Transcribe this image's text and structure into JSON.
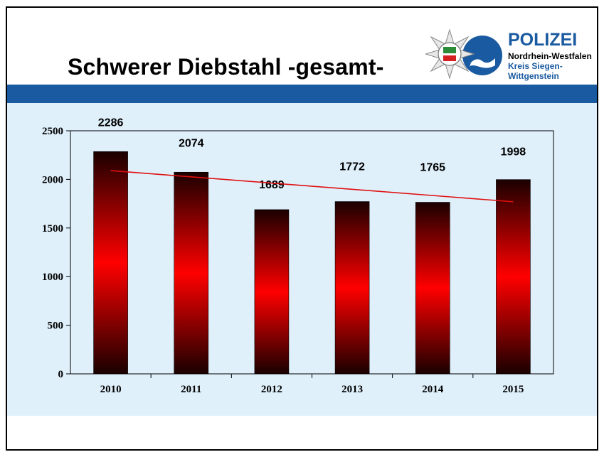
{
  "slide": {
    "title": "Schwerer Diebstahl -gesamt-"
  },
  "logo": {
    "line1": "POLIZEI",
    "line2": "Nordrhein-Westfalen",
    "line3": "Kreis Siegen-",
    "line4": "Wittgenstein",
    "icon": "police-star-badge-icon",
    "accent": "#1a5aa0"
  },
  "colors": {
    "band": "#1a5aa0",
    "panel": "#dff0fb",
    "bar_dark": "#1a0000",
    "bar_bright": "#ff0000",
    "trend": "#e01010"
  },
  "chart_data": {
    "type": "bar",
    "categories": [
      "2010",
      "2011",
      "2012",
      "2013",
      "2014",
      "2015"
    ],
    "values": [
      2286,
      2074,
      1689,
      1772,
      1765,
      1998
    ],
    "data_labels": [
      "2286",
      "2074",
      "1689",
      "1772",
      "1765",
      "1998"
    ],
    "y_ticks": [
      0,
      500,
      1000,
      1500,
      2000,
      2500
    ],
    "ylim": [
      0,
      2500
    ],
    "trendline": {
      "type": "linear",
      "start": 2090,
      "end": 1770
    },
    "grid": false,
    "legend": "none"
  }
}
